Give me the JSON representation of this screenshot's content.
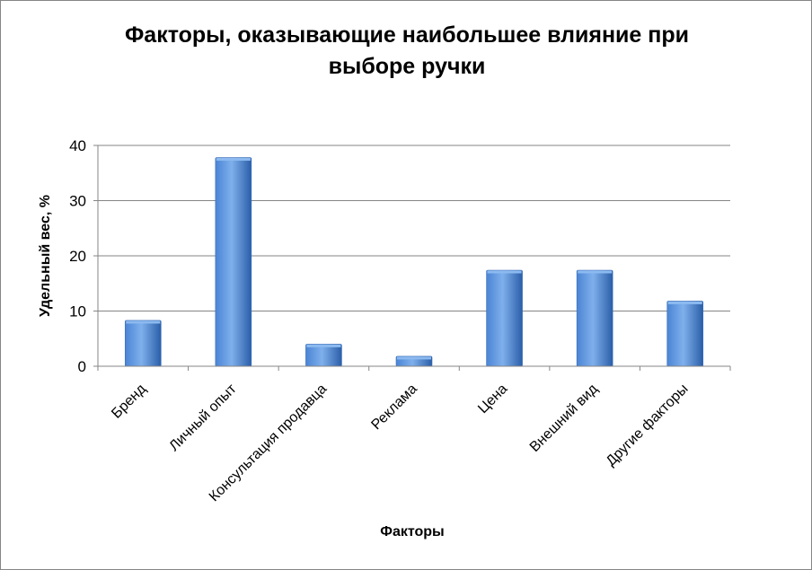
{
  "chart_data": {
    "type": "bar",
    "title_lines": [
      "Факторы, оказывающие наибольшее влияние при",
      "выборе ручки"
    ],
    "xlabel": "Факторы",
    "ylabel": "Удельный вес, %",
    "categories": [
      "Бренд",
      "Личный опыт",
      "Консультация продавца",
      "Реклама",
      "Цена",
      "Внешний вид",
      "Другие факторы"
    ],
    "values": [
      8.3,
      37.8,
      4.0,
      1.8,
      17.4,
      17.4,
      11.8
    ],
    "ylim": [
      0,
      40
    ],
    "yticks": [
      "0",
      "10",
      "20",
      "30",
      "40"
    ],
    "grid": true,
    "legend": "none",
    "colors": {
      "bar_light": "#7fb0ec",
      "bar_mid": "#4a84d4",
      "bar_dark": "#2a5ea8",
      "bar_top": "#8cbaf0",
      "grid": "#868686",
      "axis": "#868686"
    }
  }
}
